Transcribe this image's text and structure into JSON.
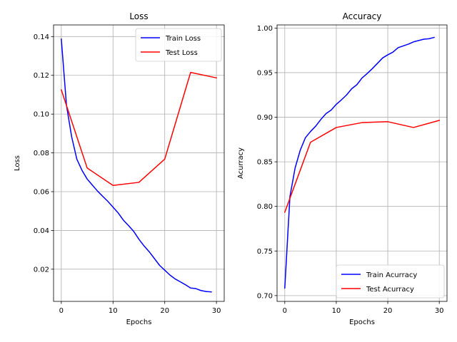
{
  "chart_data": [
    {
      "type": "line",
      "title": "Loss",
      "xlabel": "Epochs",
      "ylabel": "Loss",
      "xlim": [
        -1.5,
        31.5
      ],
      "ylim": [
        0.0034,
        0.146
      ],
      "xticks": [
        0,
        10,
        20,
        30
      ],
      "yticks": [
        0.02,
        0.04,
        0.06,
        0.08,
        0.1,
        0.12,
        0.14
      ],
      "ytick_labels": [
        "0.02",
        "0.04",
        "0.06",
        "0.08",
        "0.10",
        "0.12",
        "0.14"
      ],
      "grid": true,
      "legend_position": "upper right",
      "series": [
        {
          "name": "Train Loss",
          "color": "#0000ff",
          "x": [
            0,
            1,
            2,
            3,
            4,
            5,
            6,
            7,
            8,
            9,
            10,
            11,
            12,
            13,
            14,
            15,
            16,
            17,
            18,
            19,
            20,
            21,
            22,
            23,
            24,
            25,
            26,
            27,
            28,
            29
          ],
          "y": [
            0.1387,
            0.1045,
            0.0883,
            0.0768,
            0.071,
            0.0665,
            0.0634,
            0.0603,
            0.0576,
            0.055,
            0.052,
            0.049,
            0.0453,
            0.0425,
            0.0395,
            0.0355,
            0.032,
            0.029,
            0.0255,
            0.022,
            0.0195,
            0.017,
            0.015,
            0.0135,
            0.012,
            0.0103,
            0.01,
            0.009,
            0.0085,
            0.0083
          ]
        },
        {
          "name": "Test Loss",
          "color": "#ff0000",
          "x": [
            0,
            5,
            10,
            15,
            20,
            25,
            30
          ],
          "y": [
            0.1125,
            0.0722,
            0.0632,
            0.0648,
            0.0768,
            0.1215,
            0.1187
          ]
        }
      ]
    },
    {
      "type": "line",
      "title": "Accuracy",
      "xlabel": "Epochs",
      "ylabel": "Acurracy",
      "xlim": [
        -1.5,
        31.5
      ],
      "ylim": [
        0.6935,
        1.0035
      ],
      "xticks": [
        0,
        10,
        20,
        30
      ],
      "yticks": [
        0.7,
        0.75,
        0.8,
        0.85,
        0.9,
        0.95,
        1.0
      ],
      "ytick_labels": [
        "0.70",
        "0.75",
        "0.80",
        "0.85",
        "0.90",
        "0.95",
        "1.00"
      ],
      "grid": true,
      "legend_position": "lower right",
      "series": [
        {
          "name": "Train Acurracy",
          "color": "#0000ff",
          "x": [
            0,
            1,
            2,
            3,
            4,
            5,
            6,
            7,
            8,
            9,
            10,
            11,
            12,
            13,
            14,
            15,
            16,
            17,
            18,
            19,
            20,
            21,
            22,
            23,
            24,
            25,
            26,
            27,
            28,
            29
          ],
          "y": [
            0.7085,
            0.811,
            0.843,
            0.863,
            0.877,
            0.884,
            0.89,
            0.8975,
            0.904,
            0.908,
            0.9145,
            0.9195,
            0.925,
            0.932,
            0.9365,
            0.944,
            0.949,
            0.9545,
            0.9605,
            0.9665,
            0.97,
            0.973,
            0.978,
            0.98,
            0.982,
            0.9845,
            0.986,
            0.9875,
            0.988,
            0.9895
          ]
        },
        {
          "name": "Test Acurracy",
          "color": "#ff0000",
          "x": [
            0,
            5,
            10,
            15,
            20,
            25,
            30
          ],
          "y": [
            0.7935,
            0.872,
            0.8885,
            0.894,
            0.895,
            0.8885,
            0.8965
          ]
        }
      ]
    }
  ]
}
